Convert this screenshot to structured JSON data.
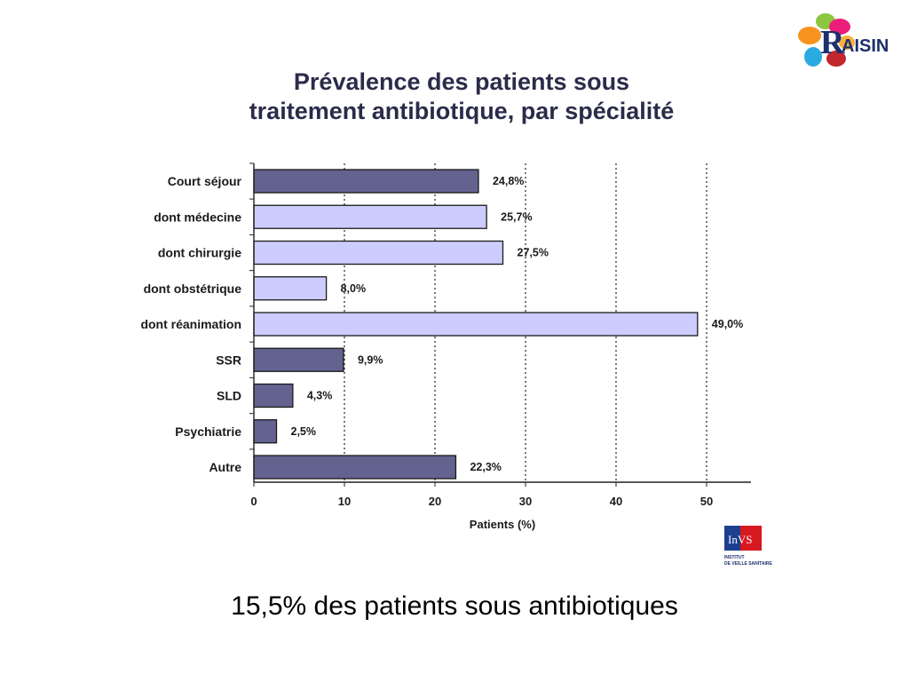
{
  "title": {
    "line1": "Prévalence des patients sous",
    "line2": "traitement antibiotique, par spécialité"
  },
  "caption": "15,5% des patients sous antibiotiques",
  "logos": {
    "raisin": "RAISIN",
    "invs": "InVS",
    "invs_sub1": "INSTITUT",
    "invs_sub2": "DE VEILLE SANITAIRE"
  },
  "colors": {
    "dark_bar": "#64628f",
    "light_bar": "#ccccff",
    "bar_stroke": "#1a1a1a",
    "title": "#2b2b4a"
  },
  "chart_data": {
    "type": "bar",
    "orientation": "horizontal",
    "title": "Prévalence des patients sous traitement antibiotique, par spécialité",
    "xlabel": "Patients (%)",
    "ylabel": "",
    "xlim": [
      0,
      55
    ],
    "xticks": [
      0,
      10,
      20,
      30,
      40,
      50
    ],
    "grid": "vertical dotted at 10, 20, 30, 40, 50",
    "categories": [
      "Court séjour",
      "dont médecine",
      "dont chirurgie",
      "dont obstétrique",
      "dont réanimation",
      "SSR",
      "SLD",
      "Psychiatrie",
      "Autre"
    ],
    "values": [
      24.8,
      25.7,
      27.5,
      8.0,
      49.0,
      9.9,
      4.3,
      2.5,
      22.3
    ],
    "value_labels": [
      "24,8%",
      "25,7%",
      "27,5%",
      "8,0%",
      "49,0%",
      "9,9%",
      "4,3%",
      "2,5%",
      "22,3%"
    ],
    "bar_style": [
      "dark",
      "light",
      "light",
      "light",
      "light",
      "dark",
      "dark",
      "dark",
      "dark"
    ]
  }
}
